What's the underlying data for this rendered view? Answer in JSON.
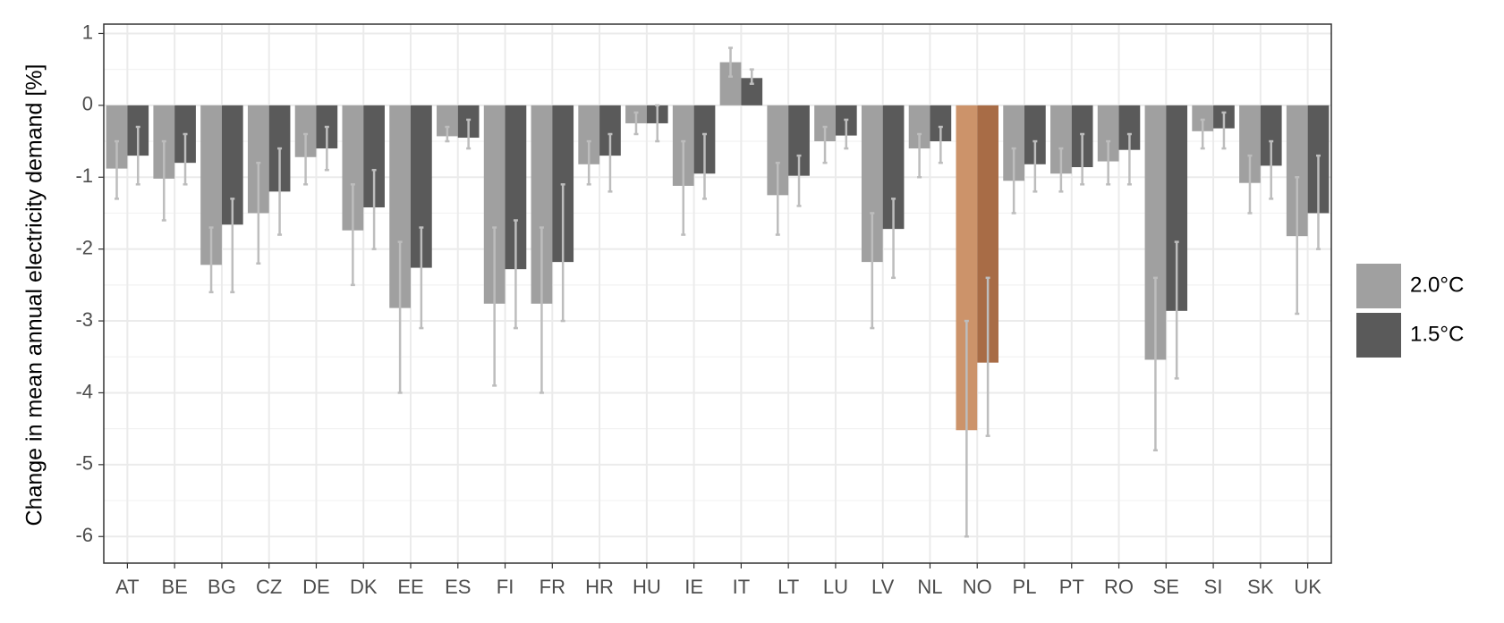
{
  "chart_data": {
    "type": "bar",
    "y_label": "Change in mean annual electricity demand [%]",
    "categories": [
      "AT",
      "BE",
      "BG",
      "CZ",
      "DE",
      "DK",
      "EE",
      "ES",
      "FI",
      "FR",
      "HR",
      "HU",
      "IE",
      "IT",
      "LT",
      "LU",
      "LV",
      "NL",
      "NO",
      "PL",
      "PT",
      "RO",
      "SE",
      "SI",
      "SK",
      "UK"
    ],
    "highlight_index": 18,
    "series": [
      {
        "name": "2.0°C",
        "color": "#a0a0a0",
        "highlight_color": "#cc936a",
        "values": [
          -0.88,
          -1.02,
          -2.22,
          -1.5,
          -0.72,
          -1.74,
          -2.82,
          -0.43,
          -2.76,
          -2.76,
          -0.82,
          -0.25,
          -1.12,
          0.6,
          -1.25,
          -0.5,
          -2.18,
          -0.6,
          -4.52,
          -1.05,
          -0.95,
          -0.78,
          -3.54,
          -0.36,
          -1.08,
          -1.82
        ],
        "error_low": [
          -1.3,
          -1.6,
          -2.6,
          -2.2,
          -1.1,
          -2.5,
          -4.0,
          -0.5,
          -3.9,
          -4.0,
          -1.1,
          -0.4,
          -1.8,
          0.4,
          -1.8,
          -0.8,
          -3.1,
          -1.0,
          -6.0,
          -1.5,
          -1.2,
          -1.1,
          -4.8,
          -0.6,
          -1.5,
          -2.9
        ],
        "error_high": [
          -0.5,
          -0.5,
          -1.7,
          -0.8,
          -0.4,
          -1.1,
          -1.9,
          -0.3,
          -1.7,
          -1.7,
          -0.5,
          -0.1,
          -0.5,
          0.8,
          -0.8,
          -0.3,
          -1.5,
          -0.4,
          -3.0,
          -0.6,
          -0.6,
          -0.5,
          -2.4,
          -0.2,
          -0.7,
          -1.0
        ]
      },
      {
        "name": "1.5°C",
        "color": "#5a5a5a",
        "highlight_color": "#a86c46",
        "values": [
          -0.7,
          -0.8,
          -1.66,
          -1.2,
          -0.6,
          -1.42,
          -2.26,
          -0.45,
          -2.28,
          -2.18,
          -0.7,
          -0.25,
          -0.95,
          0.38,
          -0.98,
          -0.42,
          -1.72,
          -0.5,
          -3.58,
          -0.82,
          -0.86,
          -0.62,
          -2.86,
          -0.32,
          -0.84,
          -1.5
        ],
        "error_low": [
          -1.1,
          -1.1,
          -2.6,
          -1.8,
          -0.9,
          -2.0,
          -3.1,
          -0.6,
          -3.1,
          -3.0,
          -1.2,
          -0.5,
          -1.3,
          0.3,
          -1.4,
          -0.6,
          -2.4,
          -0.8,
          -4.6,
          -1.2,
          -1.1,
          -1.1,
          -3.8,
          -0.6,
          -1.3,
          -2.0
        ],
        "error_high": [
          -0.3,
          -0.4,
          -1.3,
          -0.6,
          -0.3,
          -0.9,
          -1.7,
          -0.2,
          -1.6,
          -1.1,
          -0.4,
          0.0,
          -0.4,
          0.5,
          -0.7,
          -0.2,
          -1.3,
          -0.3,
          -2.4,
          -0.5,
          -0.4,
          -0.4,
          -1.9,
          -0.1,
          -0.5,
          -0.7
        ]
      }
    ],
    "error_color": "#bdbdbd",
    "ylim": [
      -6.37,
      1.13
    ],
    "yticks": [
      -6,
      -5,
      -4,
      -3,
      -2,
      -1,
      0,
      1
    ],
    "grid": true
  }
}
